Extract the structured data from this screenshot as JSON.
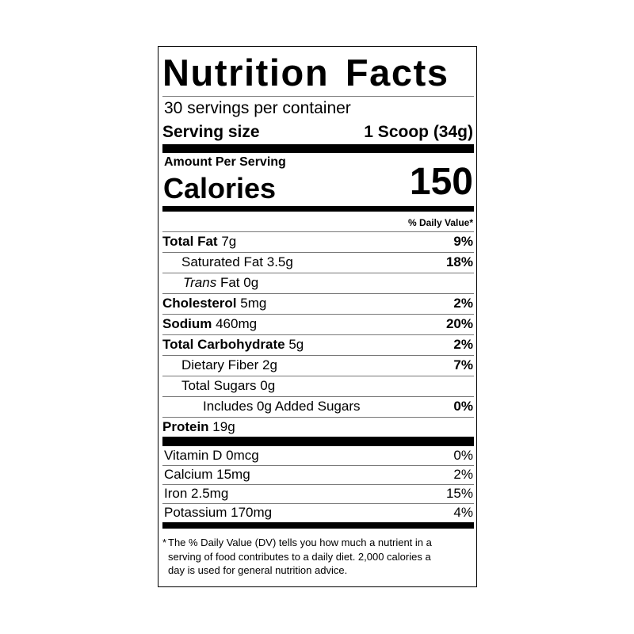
{
  "label": {
    "title": "Nutrition Facts",
    "servings": "30 servings per container",
    "serving_size_label": "Serving size",
    "serving_size_value": "1 Scoop (34g)",
    "amount_per_serving": "Amount Per Serving",
    "calories_label": "Calories",
    "calories": 150,
    "daily_value_header": "% Daily Value*",
    "nutrients": [
      {
        "name": "Total Fat",
        "amount": "7g",
        "dv": "9%"
      },
      {
        "name": "Saturated Fat",
        "amount": "3.5g",
        "dv": "18%"
      },
      {
        "name_italic": "Trans",
        "name": "Fat",
        "amount": "0g"
      },
      {
        "name": "Cholesterol",
        "amount": "5mg",
        "dv": "2%"
      },
      {
        "name": "Sodium",
        "amount": "460mg",
        "dv": "20%"
      },
      {
        "name": "Total Carbohydrate",
        "amount": "5g",
        "dv": "2%"
      },
      {
        "name": "Dietary Fiber",
        "amount": "2g",
        "dv": "7%"
      },
      {
        "name": "Total Sugars",
        "amount": "0g"
      },
      {
        "name": "Includes 0g Added Sugars",
        "dv": "0%"
      },
      {
        "name": "Protein",
        "amount": "19g"
      }
    ],
    "vitamins": [
      {
        "name": "Vitamin D",
        "amount": "0mcg",
        "dv": "0%"
      },
      {
        "name": "Calcium",
        "amount": "15mg",
        "dv": "2%"
      },
      {
        "name": "Iron",
        "amount": "2.5mg",
        "dv": "15%"
      },
      {
        "name": "Potassium",
        "amount": "170mg",
        "dv": "4%"
      }
    ],
    "footnote_mark": "*",
    "footnote_lines": [
      "The % Daily Value (DV) tells you how much a nutrient in a",
      "serving of food contributes to a daily diet. 2,000 calories a",
      "day is used for general nutrition advice."
    ]
  }
}
